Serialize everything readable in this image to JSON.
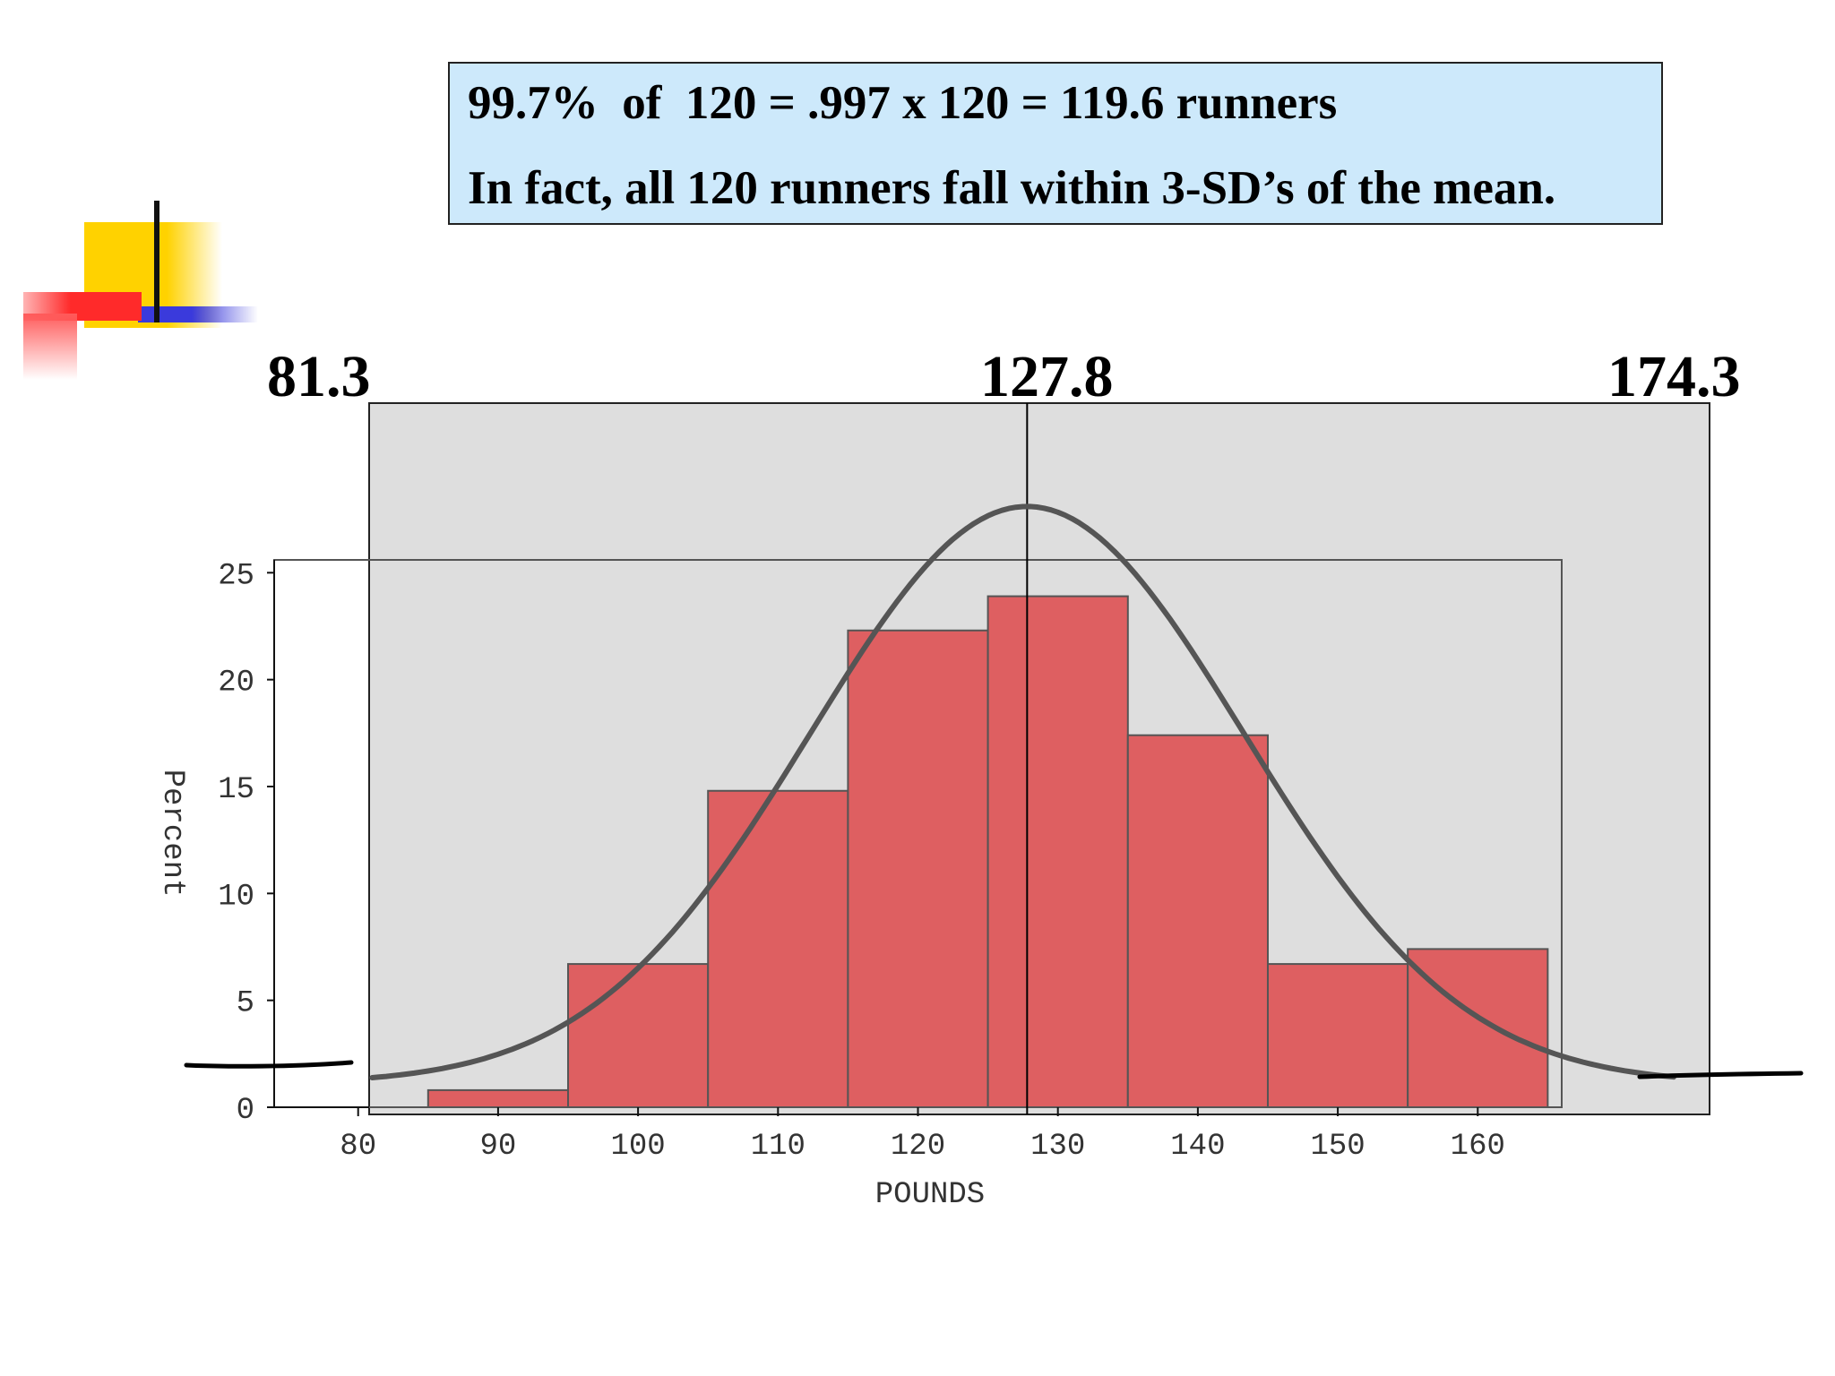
{
  "callout": {
    "line1": "99.7%  of  120 = .997 x 120 = 119.6 runners",
    "line2": "In fact, all 120 runners fall within 3-SD’s of the mean."
  },
  "annotations": {
    "lower": "81.3",
    "mean": "127.8",
    "upper": "174.3"
  },
  "colors": {
    "bar": "#de5f61",
    "plot_bg": "#dedede",
    "curve": "#555555",
    "callout_bg": "#cde9fb"
  },
  "chart_data": {
    "type": "bar",
    "title": "",
    "xlabel": "POUNDS",
    "ylabel": "Percent",
    "bin_edges": [
      85,
      95,
      105,
      115,
      125,
      135,
      145,
      155,
      165
    ],
    "values": [
      0.8,
      6.7,
      14.8,
      22.3,
      23.9,
      17.4,
      6.7,
      7.4
    ],
    "x_ticks": [
      80,
      90,
      100,
      110,
      120,
      130,
      140,
      150,
      160
    ],
    "y_ticks": [
      0,
      5,
      10,
      15,
      20,
      25
    ],
    "xlim": [
      74,
      166
    ],
    "ylim": [
      0,
      25.6
    ],
    "normal_curve": {
      "mean": 127.8,
      "sd": 15.5,
      "peak_percent": 27
    },
    "reference_lines": [
      127.8
    ]
  }
}
